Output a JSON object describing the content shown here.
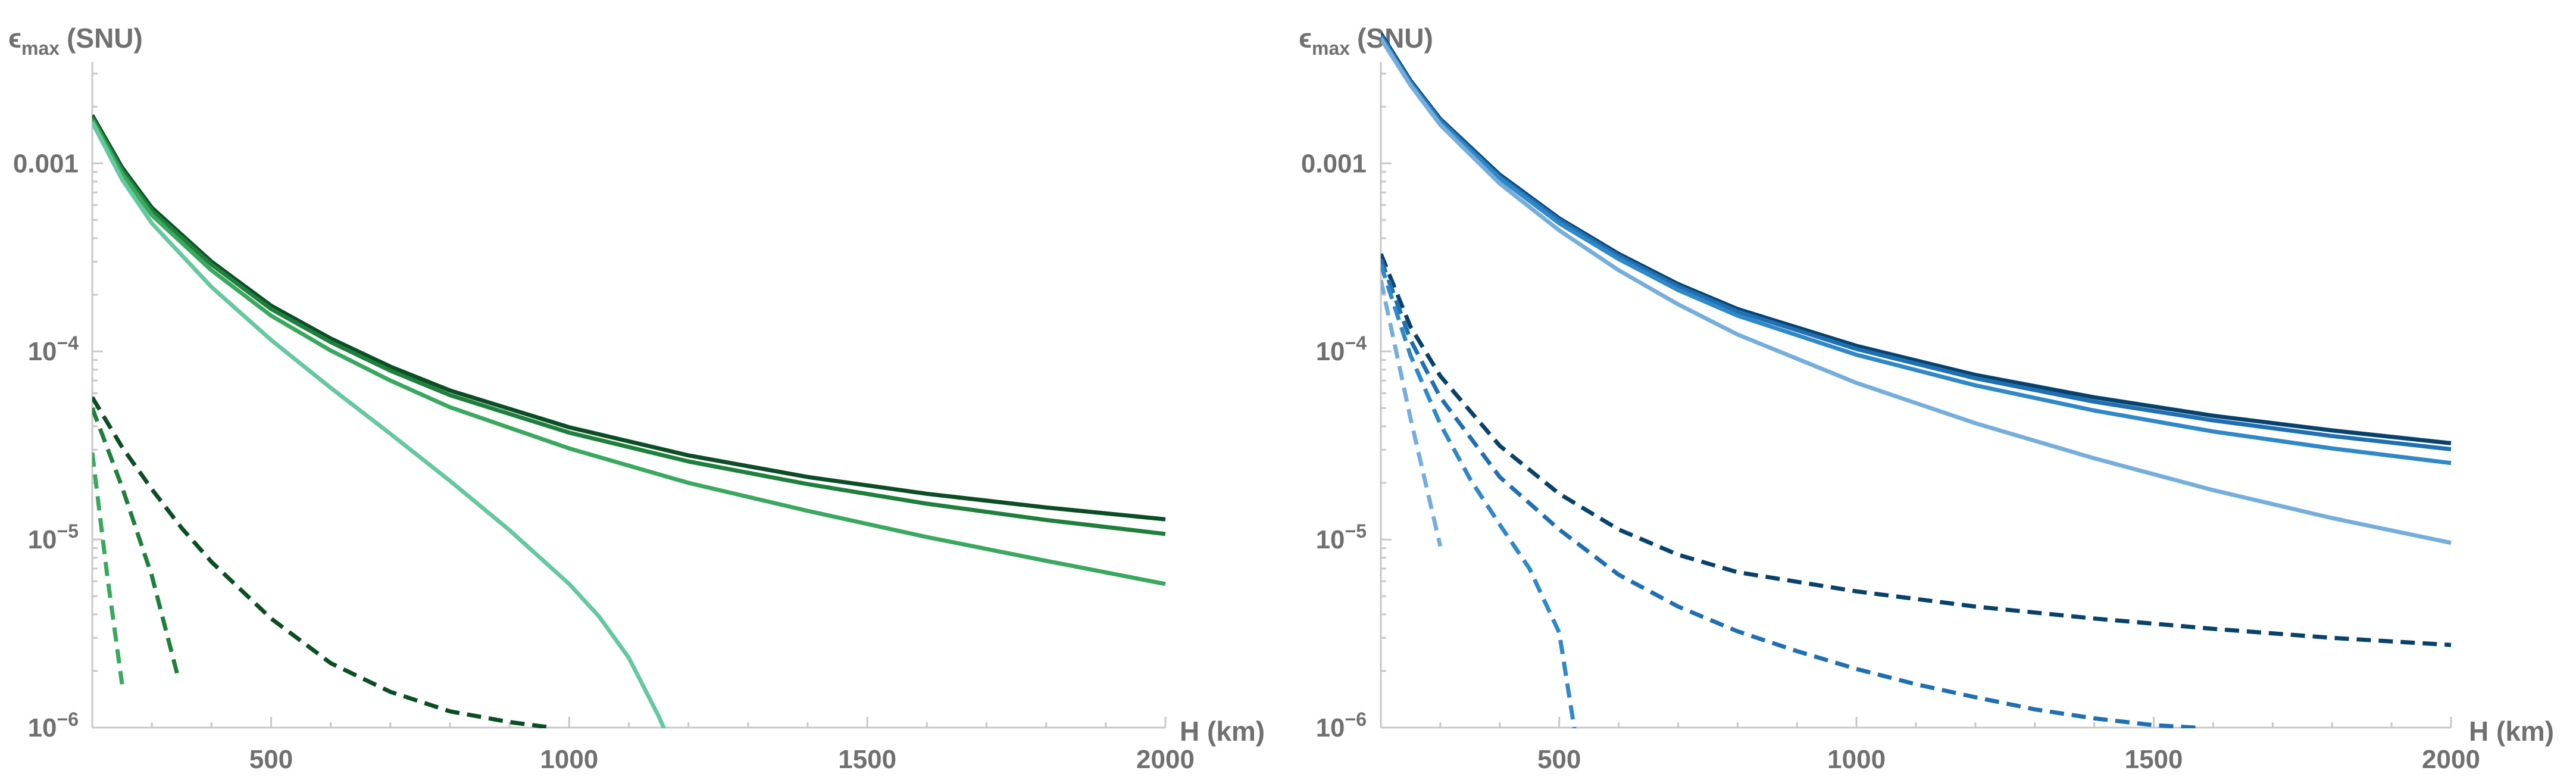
{
  "chart_data": [
    {
      "type": "line",
      "panel": "left",
      "ylabel_symbol": "ϵ",
      "ylabel_sub": "max",
      "ylabel_unit": "(SNU)",
      "xlabel": "H (km)",
      "yscale": "log",
      "xlim": [
        200,
        2000
      ],
      "ylim": [
        1e-06,
        0.005
      ],
      "xticks": [
        {
          "v": 500,
          "label": "500"
        },
        {
          "v": 1000,
          "label": "1000"
        },
        {
          "v": 1500,
          "label": "1500"
        },
        {
          "v": 2000,
          "label": "2000"
        }
      ],
      "yticks": [
        {
          "e": -3,
          "label": "0.001"
        },
        {
          "e": -4,
          "label": "10",
          "sup": "−4"
        },
        {
          "e": -5,
          "label": "10",
          "sup": "−5"
        },
        {
          "e": -6,
          "label": "10",
          "sup": "−6"
        }
      ],
      "series": [
        {
          "name": "solid-1",
          "color": "#0b4d24",
          "dash": false,
          "x": [
            200,
            250,
            300,
            400,
            500,
            600,
            700,
            800,
            1000,
            1200,
            1400,
            1600,
            1800,
            2000
          ],
          "y": [
            0.0018,
            0.00095,
            0.00058,
            0.0003,
            0.000175,
            0.000117,
            8.3e-05,
            6.2e-05,
            3.95e-05,
            2.8e-05,
            2.15e-05,
            1.75e-05,
            1.48e-05,
            1.28e-05
          ]
        },
        {
          "name": "solid-2",
          "color": "#1f7f3c",
          "dash": false,
          "x": [
            200,
            250,
            300,
            400,
            500,
            600,
            700,
            800,
            1000,
            1200,
            1400,
            1600,
            1800,
            2000
          ],
          "y": [
            0.00175,
            0.00092,
            0.00056,
            0.00029,
            0.000168,
            0.000112,
            7.9e-05,
            5.85e-05,
            3.7e-05,
            2.6e-05,
            1.97e-05,
            1.55e-05,
            1.27e-05,
            1.07e-05
          ]
        },
        {
          "name": "solid-3",
          "color": "#3aa85e",
          "dash": false,
          "x": [
            200,
            250,
            300,
            400,
            500,
            600,
            700,
            800,
            1000,
            1200,
            1400,
            1600,
            1800,
            2000
          ],
          "y": [
            0.0017,
            0.00088,
            0.00053,
            0.00027,
            0.000155,
            0.000101,
            7e-05,
            5.05e-05,
            3.05e-05,
            2e-05,
            1.42e-05,
            1.03e-05,
            7.7e-06,
            5.8e-06
          ]
        },
        {
          "name": "solid-4",
          "color": "#66c8a0",
          "dash": false,
          "x": [
            200,
            250,
            300,
            400,
            500,
            600,
            700,
            800,
            900,
            1000,
            1050,
            1100,
            1150,
            1200
          ],
          "y": [
            0.00165,
            0.00082,
            0.00048,
            0.00022,
            0.000115,
            6.4e-05,
            3.65e-05,
            2.05e-05,
            1.12e-05,
            5.8e-06,
            3.9e-06,
            2.35e-06,
            1.15e-06,
            5e-07
          ]
        },
        {
          "name": "dashed-1",
          "color": "#0b4d24",
          "dash": true,
          "x": [
            200,
            250,
            300,
            350,
            400,
            500,
            600,
            700,
            800,
            900,
            970
          ],
          "y": [
            5.7e-05,
            3.1e-05,
            1.85e-05,
            1.15e-05,
            7.6e-06,
            3.8e-06,
            2.2e-06,
            1.55e-06,
            1.22e-06,
            1.07e-06,
            1e-06
          ]
        },
        {
          "name": "dashed-2",
          "color": "#1f7f3c",
          "dash": true,
          "x": [
            200,
            250,
            300,
            345
          ],
          "y": [
            5e-05,
            1.9e-05,
            6.4e-06,
            1.8e-06
          ]
        },
        {
          "name": "dashed-3",
          "color": "#3aa85e",
          "dash": true,
          "x": [
            200,
            225,
            250
          ],
          "y": [
            2.9e-05,
            6.5e-06,
            1.7e-06
          ]
        }
      ]
    },
    {
      "type": "line",
      "panel": "right",
      "ylabel_symbol": "ϵ",
      "ylabel_sub": "max",
      "ylabel_unit": "(SNU)",
      "xlabel": "H (km)",
      "yscale": "log",
      "xlim": [
        200,
        2000
      ],
      "ylim": [
        1e-06,
        0.005
      ],
      "xticks": [
        {
          "v": 500,
          "label": "500"
        },
        {
          "v": 1000,
          "label": "1000"
        },
        {
          "v": 1500,
          "label": "1500"
        },
        {
          "v": 2000,
          "label": "2000"
        }
      ],
      "yticks": [
        {
          "e": -3,
          "label": "0.001"
        },
        {
          "e": -4,
          "label": "10",
          "sup": "−4"
        },
        {
          "e": -5,
          "label": "10",
          "sup": "−5"
        },
        {
          "e": -6,
          "label": "10",
          "sup": "−6"
        }
      ],
      "series": [
        {
          "name": "solid-1",
          "color": "#08426b",
          "dash": false,
          "x": [
            200,
            250,
            300,
            400,
            500,
            600,
            700,
            800,
            1000,
            1200,
            1400,
            1600,
            1800,
            2000
          ],
          "y": [
            0.0049,
            0.00275,
            0.00172,
            0.00087,
            0.00051,
            0.00033,
            0.000228,
            0.000168,
            0.000107,
            7.5e-05,
            5.7e-05,
            4.55e-05,
            3.8e-05,
            3.25e-05
          ]
        },
        {
          "name": "solid-2",
          "color": "#1f6fb3",
          "dash": false,
          "x": [
            200,
            250,
            300,
            400,
            500,
            600,
            700,
            800,
            1000,
            1200,
            1400,
            1600,
            1800,
            2000
          ],
          "y": [
            0.0048,
            0.0027,
            0.00169,
            0.00085,
            0.0005,
            0.000322,
            0.000222,
            0.000163,
            0.000103,
            7.2e-05,
            5.4e-05,
            4.3e-05,
            3.55e-05,
            3.02e-05
          ]
        },
        {
          "name": "solid-3",
          "color": "#2f88c8",
          "dash": false,
          "x": [
            200,
            250,
            300,
            400,
            500,
            600,
            700,
            800,
            1000,
            1200,
            1400,
            1600,
            1800,
            2000
          ],
          "y": [
            0.0047,
            0.00265,
            0.00165,
            0.00083,
            0.00048,
            0.00031,
            0.000212,
            0.000155,
            9.6e-05,
            6.6e-05,
            4.85e-05,
            3.75e-05,
            3.05e-05,
            2.55e-05
          ]
        },
        {
          "name": "solid-4",
          "color": "#76aedb",
          "dash": false,
          "x": [
            200,
            250,
            300,
            400,
            500,
            600,
            700,
            800,
            1000,
            1200,
            1400,
            1600,
            1800,
            2000
          ],
          "y": [
            0.0046,
            0.0026,
            0.0016,
            0.00078,
            0.00044,
            0.00027,
            0.000178,
            0.000123,
            6.8e-05,
            4.15e-05,
            2.7e-05,
            1.83e-05,
            1.3e-05,
            9.6e-06
          ]
        },
        {
          "name": "dashed-1",
          "color": "#08426b",
          "dash": true,
          "x": [
            200,
            250,
            300,
            400,
            500,
            600,
            700,
            800,
            1000,
            1200,
            1400,
            1600,
            1800,
            2000
          ],
          "y": [
            0.00033,
            0.000135,
            7.4e-05,
            3.15e-05,
            1.75e-05,
            1.13e-05,
            8.3e-06,
            6.7e-06,
            5.3e-06,
            4.4e-06,
            3.8e-06,
            3.35e-06,
            3e-06,
            2.75e-06
          ]
        },
        {
          "name": "dashed-2",
          "color": "#1f6fb3",
          "dash": true,
          "x": [
            200,
            250,
            300,
            400,
            500,
            600,
            700,
            800,
            900,
            1000,
            1100,
            1200,
            1300,
            1400,
            1500,
            1570
          ],
          "y": [
            0.00031,
            0.000115,
            5.7e-05,
            2.15e-05,
            1.13e-05,
            6.5e-06,
            4.4e-06,
            3.25e-06,
            2.55e-06,
            2.05e-06,
            1.7e-06,
            1.45e-06,
            1.25e-06,
            1.12e-06,
            1.03e-06,
            1e-06
          ]
        },
        {
          "name": "dashed-3",
          "color": "#2f88c8",
          "dash": true,
          "x": [
            200,
            250,
            300,
            350,
            400,
            450,
            500,
            530
          ],
          "y": [
            0.00029,
            9.5e-05,
            4.1e-05,
            2.1e-05,
            1.2e-05,
            7e-06,
            3.2e-06,
            8e-07
          ]
        },
        {
          "name": "dashed-4",
          "color": "#76aedb",
          "dash": true,
          "x": [
            200,
            250,
            300
          ],
          "y": [
            0.00024,
            4.4e-05,
            9.2e-06
          ]
        }
      ]
    }
  ]
}
